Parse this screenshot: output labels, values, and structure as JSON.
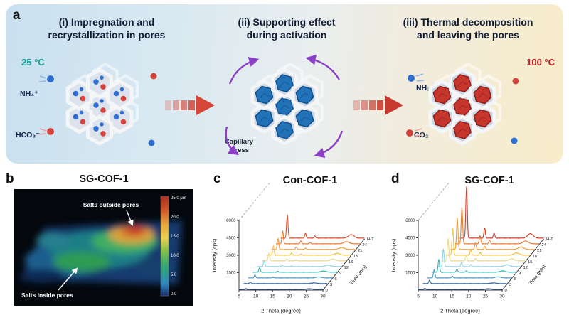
{
  "panel_a": {
    "label": "a",
    "step1_heading": "(i) Impregnation and\nrecrystallization in pores",
    "step2_heading": "(ii) Supporting effect\nduring activation",
    "step3_heading": "(iii) Thermal decomposition\nand leaving the pores",
    "temp_left": "25 °C",
    "temp_right": "100 °C",
    "temp_left_color": "#12a096",
    "temp_right_color": "#c3161c",
    "ion_nh4": "NH₄⁺",
    "ion_hco3": "HCO₃⁻",
    "ion_nh3": "NH₃",
    "ion_co2": "CO₂",
    "capillary": "Capillary\nstress",
    "colors": {
      "cell": "#dde3ec",
      "cell_mid": "#ccd5e2",
      "crystal_blue": "#2272b8",
      "crystal_blue_dark": "#0d4e8f",
      "crystal_red": "#c6362c",
      "crystal_red_dark": "#8c1f18",
      "ion_blue": "#2f6fd2",
      "ion_red": "#d5443c",
      "arrow_red": "#d6473a",
      "arrow_purple": "#8a3fc6"
    }
  },
  "panel_b": {
    "label": "b",
    "title": "SG-COF-1",
    "ann_outside": "Salts outside pores",
    "ann_inside": "Salts inside pores",
    "colorbar_ticks": [
      "25.0 μm",
      "20.0",
      "15.0",
      "10.0",
      "5.0",
      "0.0"
    ]
  },
  "chart_data": [
    {
      "type": "line",
      "variant": "3d-waterfall",
      "panel_label": "c",
      "title": "Con-COF-1",
      "xlabel": "2 Theta (degree)",
      "ylabel": "Intensity (cps)",
      "zlabel": "Time (min)",
      "x_range": [
        5,
        30
      ],
      "x_ticks": [
        5,
        10,
        15,
        20,
        25,
        30
      ],
      "y_ticks": [
        1500,
        3000,
        4500,
        6000
      ],
      "ylim": [
        0,
        6000
      ],
      "series": [
        {
          "time": "0",
          "color": "#1c3a6e",
          "peaks": [
            [
              7.0,
              60
            ],
            [
              26.0,
              40,
              0.8
            ]
          ]
        },
        {
          "time": "3",
          "color": "#2a66ad",
          "peaks": [
            [
              7.0,
              140
            ],
            [
              26.0,
              60,
              0.8
            ]
          ]
        },
        {
          "time": "6",
          "color": "#4d9bcd",
          "peaks": [
            [
              7.0,
              260
            ],
            [
              12.4,
              60
            ],
            [
              26.0,
              80,
              0.8
            ]
          ]
        },
        {
          "time": "9",
          "color": "#3ab5b0",
          "peaks": [
            [
              7.0,
              380
            ],
            [
              12.4,
              90
            ],
            [
              26.0,
              100,
              0.8
            ]
          ]
        },
        {
          "time": "12",
          "color": "#8ed4e8",
          "peaks": [
            [
              7.0,
              520
            ],
            [
              12.4,
              120
            ],
            [
              15.2,
              60
            ],
            [
              26.0,
              120,
              0.8
            ]
          ]
        },
        {
          "time": "15",
          "color": "#ead98a",
          "peaks": [
            [
              7.0,
              650
            ],
            [
              12.4,
              150
            ],
            [
              15.2,
              80
            ],
            [
              26.0,
              140,
              0.8
            ]
          ]
        },
        {
          "time": "18",
          "color": "#f3c03e",
          "peaks": [
            [
              7.0,
              800
            ],
            [
              12.4,
              180
            ],
            [
              15.2,
              100
            ],
            [
              26.0,
              160,
              0.8
            ]
          ]
        },
        {
          "time": "21",
          "color": "#f29c38",
          "peaks": [
            [
              7.0,
              950
            ],
            [
              12.4,
              210
            ],
            [
              15.2,
              110
            ],
            [
              26.0,
              170,
              0.8
            ]
          ]
        },
        {
          "time": "24",
          "color": "#ec7a2f",
          "peaks": [
            [
              7.0,
              1100
            ],
            [
              12.4,
              240
            ],
            [
              15.2,
              120
            ],
            [
              26.0,
              180,
              0.8
            ]
          ]
        },
        {
          "time": "H-T",
          "color": "#df4e2b",
          "peaks": [
            [
              7.0,
              2000
            ],
            [
              12.4,
              420
            ],
            [
              15.2,
              200
            ],
            [
              26.0,
              300,
              0.8
            ]
          ]
        }
      ]
    },
    {
      "type": "line",
      "variant": "3d-waterfall",
      "panel_label": "d",
      "title": "SG-COF-1",
      "xlabel": "2 Theta (degree)",
      "ylabel": "Intensity (cps)",
      "zlabel": "Time (min)",
      "x_range": [
        5,
        30
      ],
      "x_ticks": [
        5,
        10,
        15,
        20,
        25,
        30
      ],
      "y_ticks": [
        1500,
        3000,
        4500,
        6000
      ],
      "ylim": [
        0,
        6000
      ],
      "series": [
        {
          "time": "0",
          "color": "#1c3a6e",
          "peaks": [
            [
              7.0,
              70
            ],
            [
              26.0,
              40,
              0.8
            ]
          ]
        },
        {
          "time": "3",
          "color": "#2a66ad",
          "peaks": [
            [
              7.0,
              300
            ],
            [
              26.0,
              60,
              0.8
            ]
          ]
        },
        {
          "time": "6",
          "color": "#4d9bcd",
          "peaks": [
            [
              7.0,
              700
            ],
            [
              12.4,
              160
            ],
            [
              26.0,
              90,
              0.8
            ]
          ]
        },
        {
          "time": "9",
          "color": "#3ab5b0",
          "peaks": [
            [
              7.0,
              1100
            ],
            [
              12.4,
              250
            ],
            [
              15.2,
              120
            ],
            [
              26.0,
              120,
              0.8
            ]
          ]
        },
        {
          "time": "12",
          "color": "#8ed4e8",
          "peaks": [
            [
              7.0,
              1500
            ],
            [
              12.4,
              340
            ],
            [
              15.2,
              160
            ],
            [
              26.0,
              150,
              0.8
            ]
          ]
        },
        {
          "time": "15",
          "color": "#ead98a",
          "peaks": [
            [
              7.0,
              1900
            ],
            [
              12.4,
              430
            ],
            [
              15.2,
              200
            ],
            [
              26.0,
              180,
              0.8
            ]
          ]
        },
        {
          "time": "18",
          "color": "#f3c03e",
          "peaks": [
            [
              7.0,
              2300
            ],
            [
              12.4,
              520
            ],
            [
              15.2,
              240
            ],
            [
              26.0,
              200,
              0.8
            ]
          ]
        },
        {
          "time": "21",
          "color": "#f29c38",
          "peaks": [
            [
              7.0,
              2700
            ],
            [
              12.4,
              610
            ],
            [
              15.2,
              280
            ],
            [
              26.0,
              220,
              0.8
            ]
          ]
        },
        {
          "time": "24",
          "color": "#ec7a2f",
          "peaks": [
            [
              7.0,
              3100
            ],
            [
              12.4,
              700
            ],
            [
              15.2,
              320
            ],
            [
              26.0,
              240,
              0.8
            ]
          ]
        },
        {
          "time": "H-T",
          "color": "#d83c28",
          "peaks": [
            [
              7.0,
              4400
            ],
            [
              12.4,
              900
            ],
            [
              15.2,
              420
            ],
            [
              26.0,
              380,
              0.8
            ]
          ]
        }
      ]
    }
  ]
}
